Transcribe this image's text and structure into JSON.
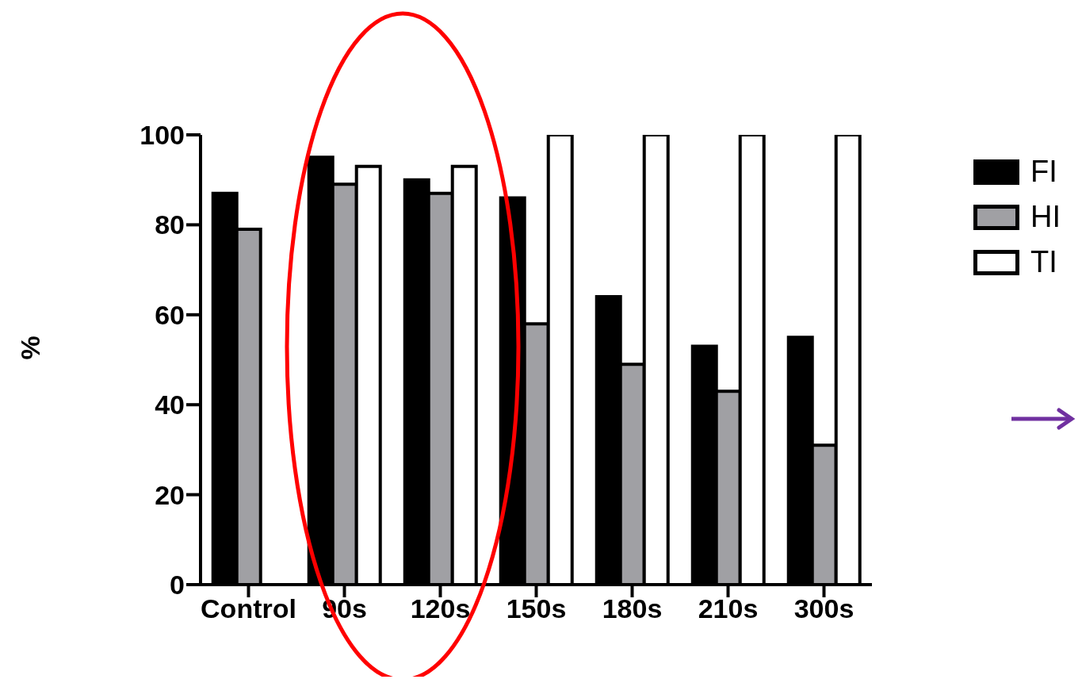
{
  "chart_data": {
    "type": "bar",
    "ylabel": "%",
    "categories": [
      "Control",
      "90s",
      "120s",
      "150s",
      "180s",
      "210s",
      "300s"
    ],
    "series": [
      {
        "name": "FI",
        "color": "#000000",
        "values": [
          87,
          95,
          90,
          86,
          64,
          53,
          55
        ]
      },
      {
        "name": "HI",
        "color": "#a0a0a4",
        "values": [
          79,
          89,
          87,
          58,
          49,
          43,
          31
        ]
      },
      {
        "name": "TI",
        "color": "#ffffff",
        "values": [
          null,
          93,
          93,
          100,
          100,
          100,
          100
        ]
      }
    ],
    "ylim": [
      0,
      100
    ],
    "yticks": [
      0,
      20,
      40,
      60,
      80,
      100
    ],
    "grid": false,
    "legend": "right"
  }
}
